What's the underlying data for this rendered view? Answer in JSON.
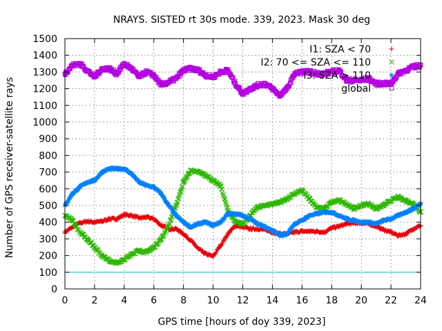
{
  "chart_data": {
    "type": "scatter",
    "title": "NRAYS. SISTED rt 30s mode. 339, 2023. Mask 30 deg",
    "xlabel": "GPS time [hours of doy 339, 2023]",
    "ylabel": "Number of GPS receiver-satellite rays",
    "xlim": [
      0,
      24
    ],
    "ylim": [
      0,
      1500
    ],
    "xticks": [
      "0",
      "2",
      "4",
      "6",
      "8",
      "10",
      "12",
      "14",
      "16",
      "18",
      "20",
      "22",
      "24"
    ],
    "yticks": [
      "0",
      "100",
      "200",
      "300",
      "400",
      "500",
      "600",
      "700",
      "800",
      "900",
      "1000",
      "1100",
      "1200",
      "1300",
      "1400",
      "1500"
    ],
    "grid": true,
    "legend_position": "top-right",
    "reference_line": {
      "y": 100,
      "color": "#00c8d8"
    },
    "series": [
      {
        "name": "I1: SZA < 70",
        "marker": "+",
        "color": "#e8000b",
        "x": [
          0,
          0.5,
          1,
          1.5,
          2,
          2.5,
          3,
          3.5,
          4,
          4.5,
          5,
          5.5,
          6,
          6.5,
          7,
          7.5,
          8,
          8.5,
          9,
          9.5,
          10,
          10.5,
          11,
          11.5,
          12,
          12.5,
          13,
          13.5,
          14,
          14.5,
          15,
          15.5,
          16,
          16.5,
          17,
          17.5,
          18,
          18.5,
          19,
          19.5,
          20,
          20.5,
          21,
          21.5,
          22,
          22.5,
          23,
          23.5,
          24
        ],
        "y": [
          340,
          370,
          395,
          405,
          400,
          405,
          420,
          420,
          445,
          440,
          425,
          430,
          420,
          380,
          360,
          360,
          330,
          290,
          240,
          210,
          195,
          260,
          330,
          380,
          370,
          360,
          360,
          355,
          340,
          330,
          330,
          340,
          345,
          345,
          345,
          340,
          365,
          375,
          390,
          395,
          395,
          390,
          375,
          355,
          340,
          320,
          330,
          360,
          380
        ]
      },
      {
        "name": "I2: 70 <= SZA <= 110",
        "marker": "x",
        "color": "#2db800",
        "x": [
          0,
          0.5,
          1,
          1.5,
          2,
          2.5,
          3,
          3.5,
          4,
          4.5,
          5,
          5.5,
          6,
          6.5,
          7,
          7.5,
          8,
          8.5,
          9,
          9.5,
          10,
          10.5,
          11,
          11.5,
          12,
          12.5,
          13,
          13.5,
          14,
          14.5,
          15,
          15.5,
          16,
          16.5,
          17,
          17.5,
          18,
          18.5,
          19,
          19.5,
          20,
          20.5,
          21,
          21.5,
          22,
          22.5,
          23,
          23.5,
          24
        ],
        "y": [
          440,
          410,
          340,
          300,
          250,
          200,
          170,
          155,
          175,
          210,
          230,
          220,
          250,
          300,
          380,
          500,
          640,
          710,
          700,
          680,
          650,
          620,
          470,
          400,
          390,
          440,
          490,
          500,
          510,
          520,
          540,
          570,
          590,
          540,
          490,
          480,
          520,
          530,
          510,
          480,
          500,
          510,
          480,
          500,
          530,
          550,
          530,
          510,
          460
        ]
      },
      {
        "name": "I3: SZA > 110",
        "marker": "*",
        "color": "#0080ff",
        "x": [
          0,
          0.5,
          1,
          1.5,
          2,
          2.5,
          3,
          3.5,
          4,
          4.5,
          5,
          5.5,
          6,
          6.5,
          7,
          7.5,
          8,
          8.5,
          9,
          9.5,
          10,
          10.5,
          11,
          11.5,
          12,
          12.5,
          13,
          13.5,
          14,
          14.5,
          15,
          15.5,
          16,
          16.5,
          17,
          17.5,
          18,
          18.5,
          19,
          19.5,
          20,
          20.5,
          21,
          21.5,
          22,
          22.5,
          23,
          23.5,
          24
        ],
        "y": [
          500,
          570,
          610,
          640,
          650,
          700,
          720,
          720,
          720,
          690,
          640,
          620,
          610,
          570,
          500,
          440,
          400,
          370,
          390,
          400,
          380,
          400,
          450,
          450,
          440,
          420,
          390,
          370,
          350,
          320,
          330,
          390,
          410,
          440,
          450,
          460,
          460,
          440,
          420,
          410,
          400,
          400,
          390,
          410,
          420,
          440,
          460,
          480,
          510
        ]
      },
      {
        "name": "global",
        "marker": "square",
        "color": "#b400e0",
        "x": [
          0,
          0.5,
          1,
          1.5,
          2,
          2.5,
          3,
          3.5,
          4,
          4.5,
          5,
          5.5,
          6,
          6.5,
          7,
          7.5,
          8,
          8.5,
          9,
          9.5,
          10,
          10.5,
          11,
          11.5,
          12,
          12.5,
          13,
          13.5,
          14,
          14.5,
          15,
          15.5,
          16,
          16.5,
          17,
          17.5,
          18,
          18.5,
          19,
          19.5,
          20,
          20.5,
          21,
          21.5,
          22,
          22.5,
          23,
          23.5,
          24
        ],
        "y": [
          1290,
          1340,
          1350,
          1310,
          1270,
          1320,
          1320,
          1290,
          1350,
          1320,
          1270,
          1300,
          1280,
          1220,
          1240,
          1260,
          1310,
          1320,
          1310,
          1280,
          1270,
          1300,
          1310,
          1230,
          1170,
          1200,
          1220,
          1230,
          1200,
          1160,
          1200,
          1290,
          1300,
          1300,
          1290,
          1290,
          1300,
          1310,
          1250,
          1250,
          1250,
          1260,
          1230,
          1230,
          1230,
          1290,
          1310,
          1330,
          1340
        ]
      }
    ]
  }
}
